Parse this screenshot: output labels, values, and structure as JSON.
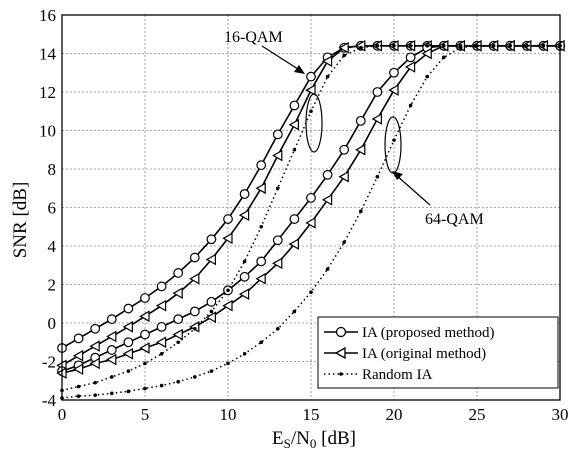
{
  "chart_data": {
    "type": "line",
    "title": "",
    "xlabel": "E_S/N_0 [dB]",
    "xlabel_main": "E",
    "xlabel_sub1": "S",
    "xlabel_mid": "/N",
    "xlabel_sub2": "0",
    "xlabel_tail": " [dB]",
    "ylabel": "SNR [dB]",
    "xlim": [
      0,
      30
    ],
    "ylim": [
      -4,
      16
    ],
    "xticks": [
      0,
      5,
      10,
      15,
      20,
      25,
      30
    ],
    "yticks": [
      -4,
      -2,
      0,
      2,
      4,
      6,
      8,
      10,
      12,
      14,
      16
    ],
    "grid": true,
    "legend_position": "bottom-right",
    "legend": [
      "IA (proposed method)",
      "IA (original method)",
      "Random IA"
    ],
    "annotations": [
      "16-QAM",
      "64-QAM"
    ],
    "series": [
      {
        "group": "16-QAM",
        "style": "proposed",
        "x": [
          0,
          1,
          2,
          3,
          4,
          5,
          6,
          7,
          8,
          9,
          10,
          11,
          12,
          13,
          14,
          15,
          16,
          17,
          18,
          19,
          20,
          21,
          22,
          23,
          24,
          25,
          26,
          27,
          28,
          29,
          30
        ],
        "y": [
          -1.3,
          -0.8,
          -0.3,
          0.2,
          0.75,
          1.3,
          1.9,
          2.6,
          3.4,
          4.35,
          5.4,
          6.7,
          8.2,
          9.8,
          11.3,
          12.8,
          13.8,
          14.3,
          14.4,
          14.4,
          14.4,
          14.4,
          14.4,
          14.4,
          14.4,
          14.4,
          14.4,
          14.4,
          14.4,
          14.4,
          14.4
        ]
      },
      {
        "group": "16-QAM",
        "style": "original",
        "x": [
          0,
          1,
          2,
          3,
          4,
          5,
          6,
          7,
          8,
          9,
          10,
          11,
          12,
          13,
          14,
          15,
          16,
          17,
          18,
          19,
          20,
          21,
          22,
          23,
          24,
          25,
          26,
          27,
          28,
          29,
          30
        ],
        "y": [
          -2.2,
          -1.7,
          -1.2,
          -0.7,
          -0.2,
          0.35,
          0.9,
          1.55,
          2.3,
          3.3,
          4.4,
          5.6,
          7.0,
          8.7,
          10.3,
          12.1,
          13.6,
          14.3,
          14.4,
          14.4,
          14.4,
          14.4,
          14.4,
          14.4,
          14.4,
          14.4,
          14.4,
          14.4,
          14.4,
          14.4,
          14.4
        ]
      },
      {
        "group": "64-QAM",
        "style": "proposed",
        "x": [
          0,
          1,
          2,
          3,
          4,
          5,
          6,
          7,
          8,
          9,
          10,
          11,
          12,
          13,
          14,
          15,
          16,
          17,
          18,
          19,
          20,
          21,
          22,
          23,
          24,
          25,
          26,
          27,
          28,
          29,
          30
        ],
        "y": [
          -2.5,
          -2.2,
          -1.8,
          -1.4,
          -1.0,
          -0.6,
          -0.2,
          0.2,
          0.6,
          1.1,
          1.7,
          2.4,
          3.2,
          4.3,
          5.4,
          6.5,
          7.7,
          9.0,
          10.5,
          12.0,
          13.0,
          13.8,
          14.3,
          14.4,
          14.4,
          14.4,
          14.4,
          14.4,
          14.4,
          14.4,
          14.4
        ]
      },
      {
        "group": "64-QAM",
        "style": "original",
        "x": [
          0,
          1,
          2,
          3,
          4,
          5,
          6,
          7,
          8,
          9,
          10,
          11,
          12,
          13,
          14,
          15,
          16,
          17,
          18,
          19,
          20,
          21,
          22,
          23,
          24,
          25,
          26,
          27,
          28,
          29,
          30
        ],
        "y": [
          -2.6,
          -2.4,
          -2.1,
          -1.9,
          -1.6,
          -1.3,
          -1.0,
          -0.6,
          -0.2,
          0.3,
          0.9,
          1.5,
          2.3,
          3.1,
          4.1,
          5.2,
          6.4,
          7.6,
          9.0,
          10.6,
          12.1,
          13.3,
          14.0,
          14.4,
          14.4,
          14.4,
          14.4,
          14.4,
          14.4,
          14.4,
          14.4
        ]
      },
      {
        "group": "16-QAM",
        "style": "random",
        "x": [
          0,
          1,
          2,
          3,
          4,
          5,
          6,
          7,
          8,
          9,
          10,
          11,
          12,
          13,
          14,
          15,
          16,
          17,
          18,
          19,
          20,
          21,
          22,
          23,
          24,
          25,
          26,
          27,
          28,
          29,
          30
        ],
        "y": [
          -3.5,
          -3.3,
          -3.1,
          -2.8,
          -2.5,
          -2.1,
          -1.6,
          -1.0,
          -0.3,
          0.6,
          1.7,
          3.2,
          5.0,
          7.0,
          9.0,
          11.0,
          12.8,
          13.9,
          14.3,
          14.4,
          14.4,
          14.4,
          14.4,
          14.4,
          14.4,
          14.4,
          14.4,
          14.4,
          14.4,
          14.4,
          14.4
        ]
      },
      {
        "group": "64-QAM",
        "style": "random",
        "x": [
          0,
          1,
          2,
          3,
          4,
          5,
          6,
          7,
          8,
          9,
          10,
          11,
          12,
          13,
          14,
          15,
          16,
          17,
          18,
          19,
          20,
          21,
          22,
          23,
          24,
          25,
          26,
          27,
          28,
          29,
          30
        ],
        "y": [
          -3.9,
          -3.8,
          -3.75,
          -3.65,
          -3.55,
          -3.4,
          -3.25,
          -3.05,
          -2.8,
          -2.5,
          -2.1,
          -1.6,
          -1.0,
          -0.3,
          0.6,
          1.6,
          2.8,
          4.2,
          5.8,
          7.6,
          9.5,
          11.3,
          12.8,
          13.8,
          14.3,
          14.4,
          14.4,
          14.4,
          14.4,
          14.4,
          14.4
        ]
      }
    ]
  }
}
